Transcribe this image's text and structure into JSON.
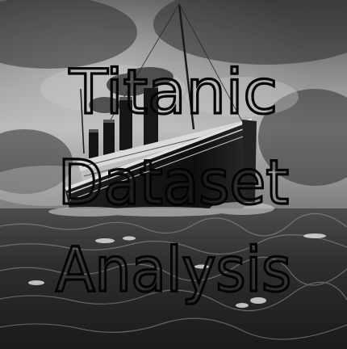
{
  "poster": {
    "title_lines": [
      "Titanic",
      "Dataset",
      "Analysis"
    ],
    "subject_icon": "ship-illustration",
    "palette": {
      "sky_light": "#b9b9b9",
      "sky_dark": "#3a3a3a",
      "sea_dark": "#202020",
      "sea_light": "#5a5a5a",
      "hull": "#151515",
      "text_outline": "#000000"
    }
  }
}
